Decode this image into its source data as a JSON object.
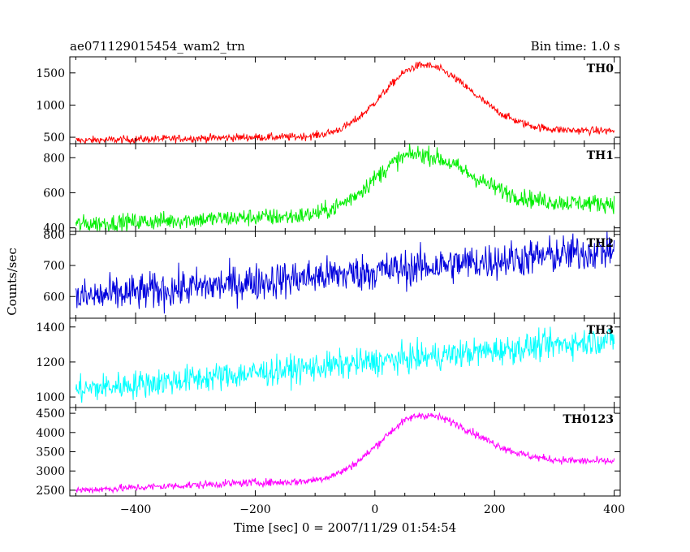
{
  "header": {
    "title": "ae071129015454_wam2_trn",
    "bin_time": "Bin time: 1.0 s"
  },
  "chart_data": {
    "type": "line",
    "xlabel": "Time [sec] 0 = 2007/11/29 01:54:54",
    "ylabel": "Counts/sec",
    "xlim": [
      -510,
      410
    ],
    "x_ticks": [
      "−400",
      "−200",
      "0",
      "200",
      "400"
    ],
    "x_tick_values": [
      -400,
      -200,
      0,
      200,
      400
    ],
    "x_range": [
      -500,
      400
    ],
    "grid": false,
    "panels": [
      {
        "name": "TH0",
        "color": "#ff0000",
        "ylim": [
          400,
          1750
        ],
        "y_ticks": [
          "500",
          "1000",
          "1500"
        ],
        "y_tick_values": [
          500,
          1000,
          1500
        ],
        "model": {
          "start": 450,
          "end_slope": 500,
          "peak": 1620,
          "center": 80,
          "width": 70,
          "post": 600,
          "noise": 30
        },
        "key_points": [
          [
            -500,
            450
          ],
          [
            -200,
            510
          ],
          [
            -50,
            700
          ],
          [
            0,
            1050
          ],
          [
            80,
            1620
          ],
          [
            150,
            1300
          ],
          [
            250,
            760
          ],
          [
            400,
            600
          ]
        ]
      },
      {
        "name": "TH1",
        "color": "#00ee00",
        "ylim": [
          380,
          880
        ],
        "y_ticks": [
          "400",
          "600",
          "800"
        ],
        "y_tick_values": [
          400,
          600,
          800
        ],
        "model": {
          "start": 420,
          "end_slope": 460,
          "peak": 820,
          "center": 70,
          "width": 75,
          "post": 540,
          "noise": 25
        },
        "key_points": [
          [
            -500,
            420
          ],
          [
            -200,
            460
          ],
          [
            -50,
            600
          ],
          [
            0,
            720
          ],
          [
            70,
            820
          ],
          [
            200,
            650
          ],
          [
            400,
            540
          ]
        ]
      },
      {
        "name": "TH2",
        "color": "#0000dd",
        "ylim": [
          530,
          810
        ],
        "y_ticks": [
          "600",
          "700",
          "800"
        ],
        "y_tick_values": [
          600,
          700,
          800
        ],
        "model": {
          "linear": true,
          "a": 595,
          "b": 750,
          "noise": 30
        },
        "key_points": [
          [
            -500,
            595
          ],
          [
            -200,
            635
          ],
          [
            0,
            700
          ],
          [
            200,
            730
          ],
          [
            400,
            750
          ]
        ]
      },
      {
        "name": "TH3",
        "color": "#00ffff",
        "ylim": [
          940,
          1450
        ],
        "y_ticks": [
          "1000",
          "1200",
          "1400"
        ],
        "y_tick_values": [
          1000,
          1200,
          1400
        ],
        "model": {
          "linear": true,
          "a": 1040,
          "b": 1330,
          "noise": 40
        },
        "key_points": [
          [
            -500,
            1040
          ],
          [
            -200,
            1120
          ],
          [
            0,
            1250
          ],
          [
            200,
            1270
          ],
          [
            400,
            1330
          ]
        ]
      },
      {
        "name": "TH0123",
        "color": "#ff00ff",
        "ylim": [
          2350,
          4650
        ],
        "y_ticks": [
          "2500",
          "3000",
          "3500",
          "4000",
          "4500"
        ],
        "y_tick_values": [
          2500,
          3000,
          3500,
          4000,
          4500
        ],
        "model": {
          "start": 2500,
          "end_slope": 2700,
          "peak": 4450,
          "center": 80,
          "width": 75,
          "post": 3250,
          "noise": 50
        },
        "key_points": [
          [
            -500,
            2500
          ],
          [
            -200,
            2700
          ],
          [
            0,
            3500
          ],
          [
            80,
            4450
          ],
          [
            200,
            3700
          ],
          [
            400,
            3250
          ]
        ]
      }
    ]
  }
}
